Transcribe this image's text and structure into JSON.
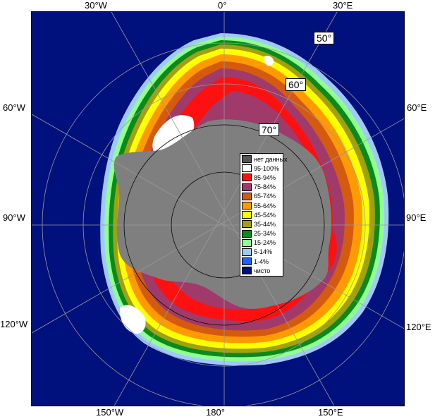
{
  "map": {
    "ocean_color": "#00107d",
    "land_color": "#7f7f7f",
    "grid_color": "#9a9a9a"
  },
  "longitude_labels": {
    "top": [
      "30°W",
      "0°",
      "30°E"
    ],
    "bottom": [
      "150°W",
      "180°",
      "150°E"
    ],
    "left": [
      "60°W",
      "90°W",
      "120°W"
    ],
    "right": [
      "60°E",
      "90°E",
      "120°E"
    ]
  },
  "latitude_labels": [
    "50°",
    "60°",
    "70°"
  ],
  "legend": {
    "items": [
      {
        "label": "нет данных",
        "color": "#555555"
      },
      {
        "label": "95-100%",
        "color": "#ffffff"
      },
      {
        "label": "85-94%",
        "color": "#ff1010"
      },
      {
        "label": "75-84%",
        "color": "#a03a6a"
      },
      {
        "label": "65-74%",
        "color": "#d45a10"
      },
      {
        "label": "55-64%",
        "color": "#ff9a00"
      },
      {
        "label": "45-54%",
        "color": "#ffff00"
      },
      {
        "label": "35-44%",
        "color": "#a0a010"
      },
      {
        "label": "25-34%",
        "color": "#0a8a1a"
      },
      {
        "label": "15-24%",
        "color": "#90ff90"
      },
      {
        "label": "5-14%",
        "color": "#a0c8ff"
      },
      {
        "label": "1-4%",
        "color": "#2060ff"
      },
      {
        "label": "чисто",
        "color": "#00107d"
      }
    ]
  }
}
